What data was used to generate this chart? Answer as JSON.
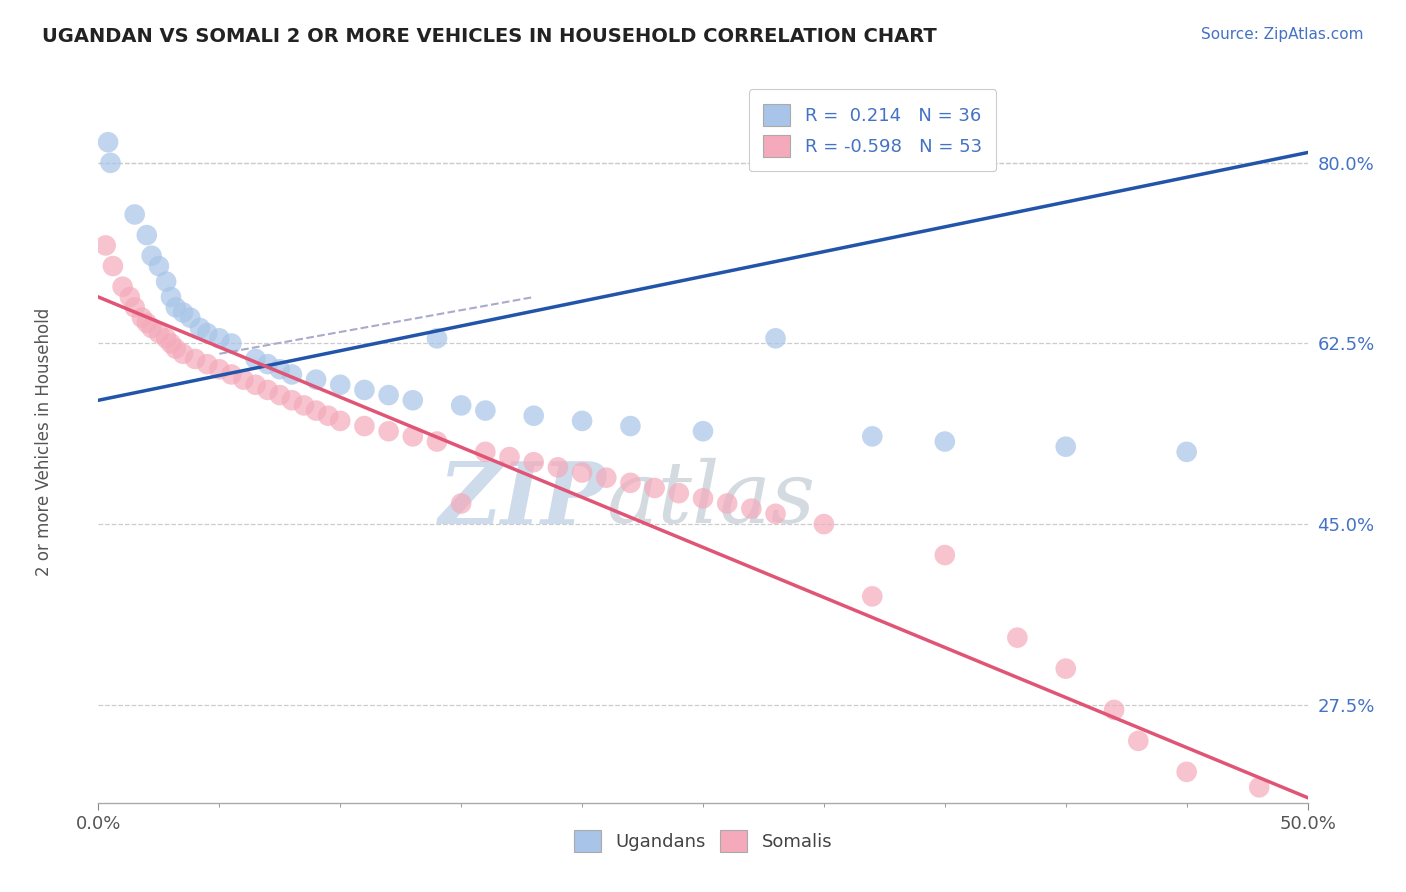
{
  "title": "UGANDAN VS SOMALI 2 OR MORE VEHICLES IN HOUSEHOLD CORRELATION CHART",
  "source": "Source: ZipAtlas.com",
  "ylabel": "2 or more Vehicles in Household",
  "xlim": [
    0.0,
    50.0
  ],
  "ylim": [
    18.0,
    88.0
  ],
  "yticks_right": [
    27.5,
    45.0,
    62.5,
    80.0
  ],
  "legend_r1": "R =  0.214   N = 36",
  "legend_r2": "R = -0.598   N = 53",
  "ugandan_color": "#a8c4e8",
  "somali_color": "#f4aabb",
  "ugandan_line_color": "#2255aa",
  "somali_line_color": "#e05575",
  "background": "#ffffff",
  "watermark_zip": "ZIP",
  "watermark_atlas": "atlas",
  "watermark_color_zip": "#c5d5e8",
  "watermark_color_atlas": "#c5cfd8",
  "ugandan_line_x0": 0.0,
  "ugandan_line_y0": 57.0,
  "ugandan_line_x1": 50.0,
  "ugandan_line_y1": 81.0,
  "somali_line_x0": 0.0,
  "somali_line_y0": 67.0,
  "somali_line_x1": 50.0,
  "somali_line_y1": 18.5,
  "ugandan_x": [
    0.4,
    0.5,
    1.5,
    2.0,
    2.2,
    2.5,
    2.8,
    3.0,
    3.2,
    3.5,
    3.8,
    4.2,
    4.5,
    5.0,
    5.5,
    6.5,
    7.0,
    7.5,
    8.0,
    9.0,
    10.0,
    11.0,
    12.0,
    13.0,
    14.0,
    15.0,
    16.0,
    18.0,
    20.0,
    22.0,
    25.0,
    28.0,
    32.0,
    35.0,
    40.0,
    45.0
  ],
  "ugandan_y": [
    82.0,
    80.0,
    75.0,
    73.0,
    71.0,
    70.0,
    68.5,
    67.0,
    66.0,
    65.5,
    65.0,
    64.0,
    63.5,
    63.0,
    62.5,
    61.0,
    60.5,
    60.0,
    59.5,
    59.0,
    58.5,
    58.0,
    57.5,
    57.0,
    63.0,
    56.5,
    56.0,
    55.5,
    55.0,
    54.5,
    54.0,
    63.0,
    53.5,
    53.0,
    52.5,
    52.0
  ],
  "somali_x": [
    0.3,
    0.6,
    1.0,
    1.3,
    1.5,
    1.8,
    2.0,
    2.2,
    2.5,
    2.8,
    3.0,
    3.2,
    3.5,
    4.0,
    4.5,
    5.0,
    5.5,
    6.0,
    6.5,
    7.0,
    7.5,
    8.0,
    8.5,
    9.0,
    9.5,
    10.0,
    11.0,
    12.0,
    13.0,
    14.0,
    15.0,
    16.0,
    17.0,
    18.0,
    19.0,
    20.0,
    21.0,
    22.0,
    23.0,
    24.0,
    25.0,
    26.0,
    27.0,
    28.0,
    30.0,
    32.0,
    35.0,
    38.0,
    40.0,
    42.0,
    43.0,
    45.0,
    48.0
  ],
  "somali_y": [
    72.0,
    70.0,
    68.0,
    67.0,
    66.0,
    65.0,
    64.5,
    64.0,
    63.5,
    63.0,
    62.5,
    62.0,
    61.5,
    61.0,
    60.5,
    60.0,
    59.5,
    59.0,
    58.5,
    58.0,
    57.5,
    57.0,
    56.5,
    56.0,
    55.5,
    55.0,
    54.5,
    54.0,
    53.5,
    53.0,
    47.0,
    52.0,
    51.5,
    51.0,
    50.5,
    50.0,
    49.5,
    49.0,
    48.5,
    48.0,
    47.5,
    47.0,
    46.5,
    46.0,
    45.0,
    38.0,
    42.0,
    34.0,
    31.0,
    27.0,
    24.0,
    21.0,
    19.5
  ]
}
